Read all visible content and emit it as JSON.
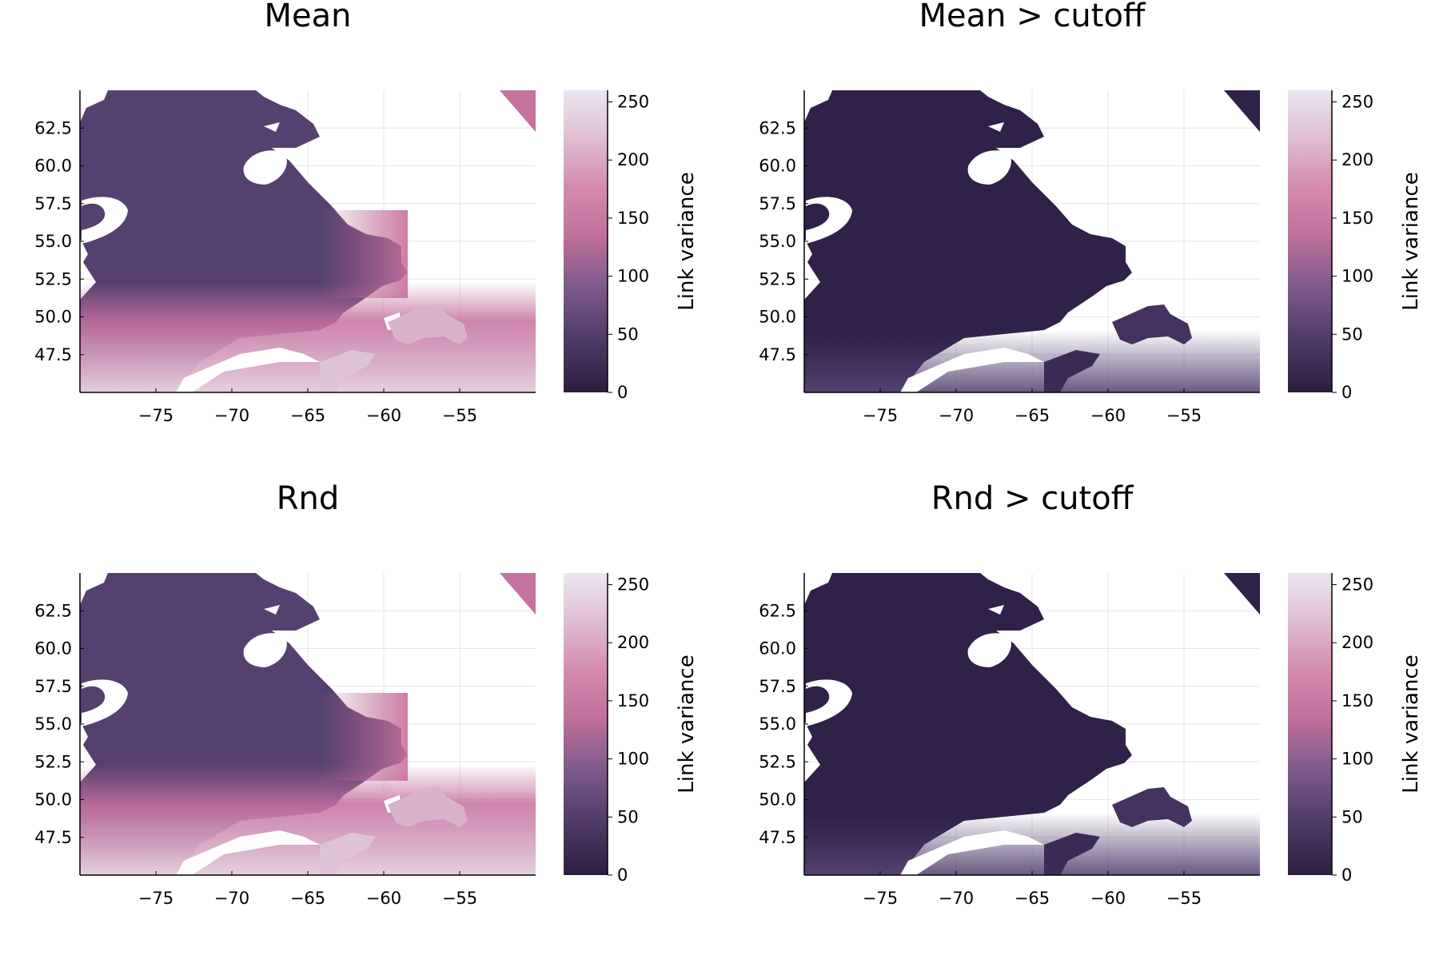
{
  "chart_data": [
    {
      "type": "heatmap",
      "title": "Mean",
      "colorbar_label": "Link variance",
      "x_ticks": [
        -75,
        -70,
        -65,
        -60,
        -55
      ],
      "x_tick_labels": [
        "−75",
        "−70",
        "−65",
        "−60",
        "−55"
      ],
      "y_ticks": [
        47.5,
        50.0,
        52.5,
        55.0,
        57.5,
        60.0,
        62.5
      ],
      "y_tick_labels": [
        "47.5",
        "50.0",
        "52.5",
        "55.0",
        "57.5",
        "60.0",
        "62.5"
      ],
      "xlim": [
        -80,
        -50
      ],
      "ylim": [
        45,
        65
      ],
      "colorbar_ticks": [
        0,
        50,
        100,
        150,
        200,
        250
      ],
      "colorbar_tick_labels": [
        "0",
        "50",
        "100",
        "150",
        "200",
        "250"
      ],
      "color_range": [
        0,
        260
      ],
      "grid": true,
      "fill": "raw"
    },
    {
      "type": "heatmap",
      "title": "Mean > cutoff",
      "colorbar_label": "Link variance",
      "x_ticks": [
        -75,
        -70,
        -65,
        -60,
        -55
      ],
      "x_tick_labels": [
        "−75",
        "−70",
        "−65",
        "−60",
        "−55"
      ],
      "y_ticks": [
        47.5,
        50.0,
        52.5,
        55.0,
        57.5,
        60.0,
        62.5
      ],
      "y_tick_labels": [
        "47.5",
        "50.0",
        "52.5",
        "55.0",
        "57.5",
        "60.0",
        "62.5"
      ],
      "xlim": [
        -80,
        -50
      ],
      "ylim": [
        45,
        65
      ],
      "colorbar_ticks": [
        0,
        50,
        100,
        150,
        200,
        250
      ],
      "colorbar_tick_labels": [
        "0",
        "50",
        "100",
        "150",
        "200",
        "250"
      ],
      "color_range": [
        0,
        260
      ],
      "grid": true,
      "fill": "cutoff"
    },
    {
      "type": "heatmap",
      "title": "Rnd",
      "colorbar_label": "Link variance",
      "x_ticks": [
        -75,
        -70,
        -65,
        -60,
        -55
      ],
      "x_tick_labels": [
        "−75",
        "−70",
        "−65",
        "−60",
        "−55"
      ],
      "y_ticks": [
        47.5,
        50.0,
        52.5,
        55.0,
        57.5,
        60.0,
        62.5
      ],
      "y_tick_labels": [
        "47.5",
        "50.0",
        "52.5",
        "55.0",
        "57.5",
        "60.0",
        "62.5"
      ],
      "xlim": [
        -80,
        -50
      ],
      "ylim": [
        45,
        65
      ],
      "colorbar_ticks": [
        0,
        50,
        100,
        150,
        200,
        250
      ],
      "colorbar_tick_labels": [
        "0",
        "50",
        "100",
        "150",
        "200",
        "250"
      ],
      "color_range": [
        0,
        260
      ],
      "grid": true,
      "fill": "raw"
    },
    {
      "type": "heatmap",
      "title": "Rnd > cutoff",
      "colorbar_label": "Link variance",
      "x_ticks": [
        -75,
        -70,
        -65,
        -60,
        -55
      ],
      "x_tick_labels": [
        "−75",
        "−70",
        "−65",
        "−60",
        "−55"
      ],
      "y_ticks": [
        47.5,
        50.0,
        52.5,
        55.0,
        57.5,
        60.0,
        62.5
      ],
      "y_tick_labels": [
        "47.5",
        "50.0",
        "52.5",
        "55.0",
        "57.5",
        "60.0",
        "62.5"
      ],
      "xlim": [
        -80,
        -50
      ],
      "ylim": [
        45,
        65
      ],
      "colorbar_ticks": [
        0,
        50,
        100,
        150,
        200,
        250
      ],
      "colorbar_tick_labels": [
        "0",
        "50",
        "100",
        "150",
        "200",
        "250"
      ],
      "color_range": [
        0,
        260
      ],
      "grid": true,
      "fill": "cutoff"
    }
  ],
  "colors": {
    "colormap": [
      "#2d1e3e",
      "#4d3a66",
      "#7e5a8c",
      "#c0709a",
      "#d48cae",
      "#e0c0d4",
      "#ebe6f1"
    ],
    "grid": "#e6e6e6",
    "axis": "#000000",
    "land_cutoff": "#2f2148"
  }
}
